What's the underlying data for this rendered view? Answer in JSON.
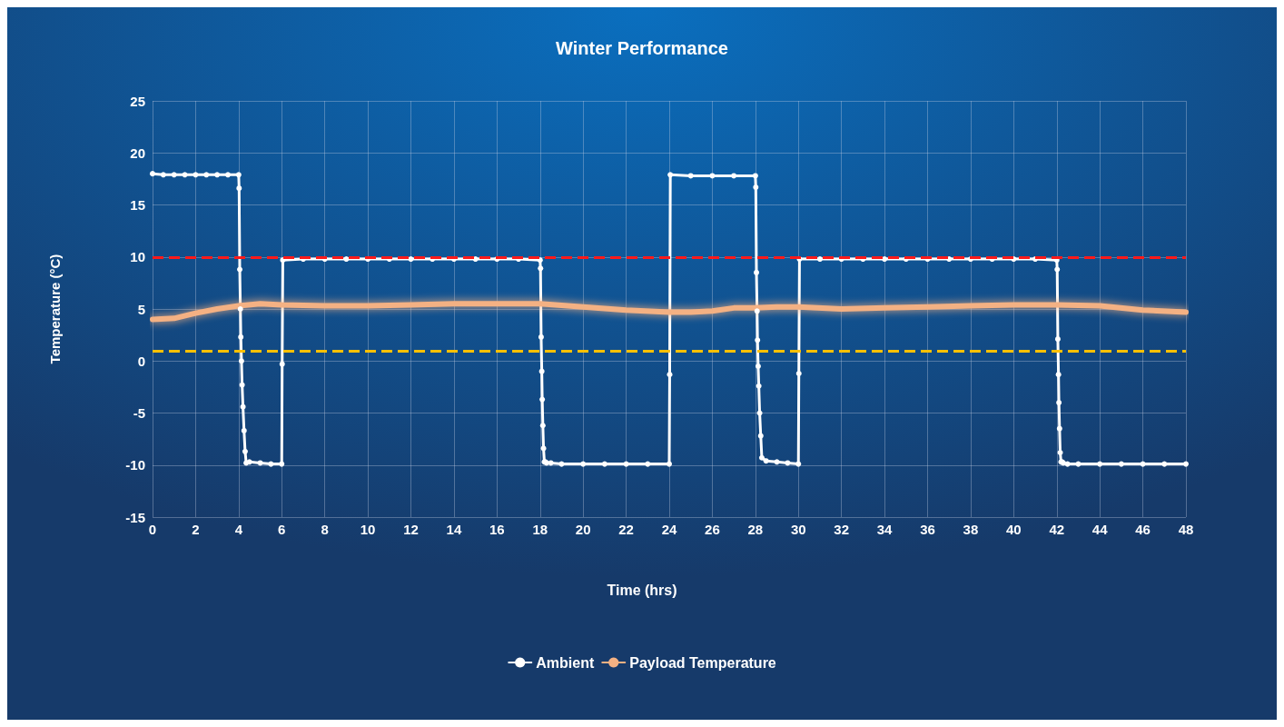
{
  "chart_data": {
    "type": "line",
    "title": "Winter Performance",
    "xlabel": "Time (hrs)",
    "ylabel": "Temperature (°C)",
    "xlim": [
      0,
      48
    ],
    "xticks": [
      0,
      2,
      4,
      6,
      8,
      10,
      12,
      14,
      16,
      18,
      20,
      22,
      24,
      26,
      28,
      30,
      32,
      34,
      36,
      38,
      40,
      42,
      44,
      46,
      48
    ],
    "ylim": [
      -15,
      25
    ],
    "yticks": [
      -15,
      -10,
      -5,
      0,
      5,
      10,
      15,
      20,
      25
    ],
    "grid": true,
    "legend": "bottom",
    "series": [
      {
        "name": "Ambient",
        "color": "#ffffff",
        "marker": "circle",
        "x": [
          0,
          0.5,
          1,
          1.5,
          2,
          2.5,
          3,
          3.5,
          4,
          4.02,
          4.05,
          4.08,
          4.1,
          4.13,
          4.16,
          4.2,
          4.25,
          4.3,
          4.35,
          4.5,
          5,
          5.5,
          6,
          6.02,
          6.05,
          7,
          8,
          9,
          10,
          11,
          12,
          13,
          14,
          15,
          16,
          17,
          18,
          18.02,
          18.05,
          18.08,
          18.1,
          18.13,
          18.16,
          18.2,
          18.25,
          18.3,
          18.5,
          19,
          20,
          21,
          22,
          23,
          24,
          24.02,
          24.05,
          25,
          26,
          27,
          28,
          28.02,
          28.05,
          28.08,
          28.1,
          28.13,
          28.16,
          28.2,
          28.25,
          28.3,
          28.5,
          29,
          29.5,
          30,
          30.02,
          30.05,
          31,
          32,
          33,
          34,
          35,
          36,
          37,
          38,
          39,
          40,
          41,
          42,
          42.02,
          42.05,
          42.08,
          42.1,
          42.13,
          42.16,
          42.2,
          42.25,
          42.3,
          42.5,
          43,
          44,
          45,
          46,
          47,
          48
        ],
        "values": [
          18,
          17.9,
          17.9,
          17.9,
          17.9,
          17.9,
          17.9,
          17.9,
          17.9,
          16.6,
          8.8,
          5,
          2.3,
          0,
          -2.3,
          -4.4,
          -6.7,
          -8.7,
          -9.8,
          -9.7,
          -9.8,
          -9.9,
          -9.9,
          -0.3,
          9.7,
          9.8,
          9.8,
          9.8,
          9.8,
          9.8,
          9.8,
          9.8,
          9.8,
          9.8,
          9.8,
          9.8,
          9.7,
          8.9,
          2.3,
          -1,
          -3.7,
          -6.2,
          -8.4,
          -9.7,
          -9.7,
          -9.8,
          -9.8,
          -9.9,
          -9.9,
          -9.9,
          -9.9,
          -9.9,
          -9.9,
          -1.3,
          17.9,
          17.8,
          17.8,
          17.8,
          17.8,
          16.7,
          8.5,
          4.8,
          2,
          -0.5,
          -2.4,
          -5,
          -7.2,
          -9.3,
          -9.6,
          -9.7,
          -9.8,
          -9.9,
          -1.2,
          9.8,
          9.8,
          9.8,
          9.8,
          9.8,
          9.8,
          9.8,
          9.8,
          9.8,
          9.8,
          9.8,
          9.8,
          9.7,
          8.8,
          2.1,
          -1.3,
          -4,
          -6.5,
          -8.8,
          -9.7,
          -9.7,
          -9.8,
          -9.9,
          -9.9,
          -9.9,
          -9.9,
          -9.9,
          -9.9,
          -9.9
        ]
      },
      {
        "name": "Payload Temperature",
        "color": "#f4b183",
        "marker": "none",
        "x": [
          0,
          1,
          2,
          3,
          4,
          5,
          6,
          8,
          10,
          12,
          14,
          16,
          18,
          20,
          22,
          24,
          25,
          26,
          27,
          28,
          29,
          30,
          32,
          34,
          36,
          38,
          40,
          42,
          44,
          46,
          48
        ],
        "values": [
          4,
          4.1,
          4.6,
          5,
          5.3,
          5.5,
          5.4,
          5.3,
          5.3,
          5.4,
          5.5,
          5.5,
          5.5,
          5.2,
          4.9,
          4.7,
          4.7,
          4.8,
          5.1,
          5.1,
          5.2,
          5.2,
          5,
          5.1,
          5.2,
          5.3,
          5.4,
          5.4,
          5.3,
          4.9,
          4.7
        ]
      }
    ],
    "ref_lines": [
      {
        "axis": "y",
        "value": 10,
        "label": null,
        "color": "#ff1a1a",
        "line_style": "dashed"
      },
      {
        "axis": "y",
        "value": 1,
        "label": null,
        "color": "#ffc000",
        "line_style": "dashed"
      }
    ]
  }
}
